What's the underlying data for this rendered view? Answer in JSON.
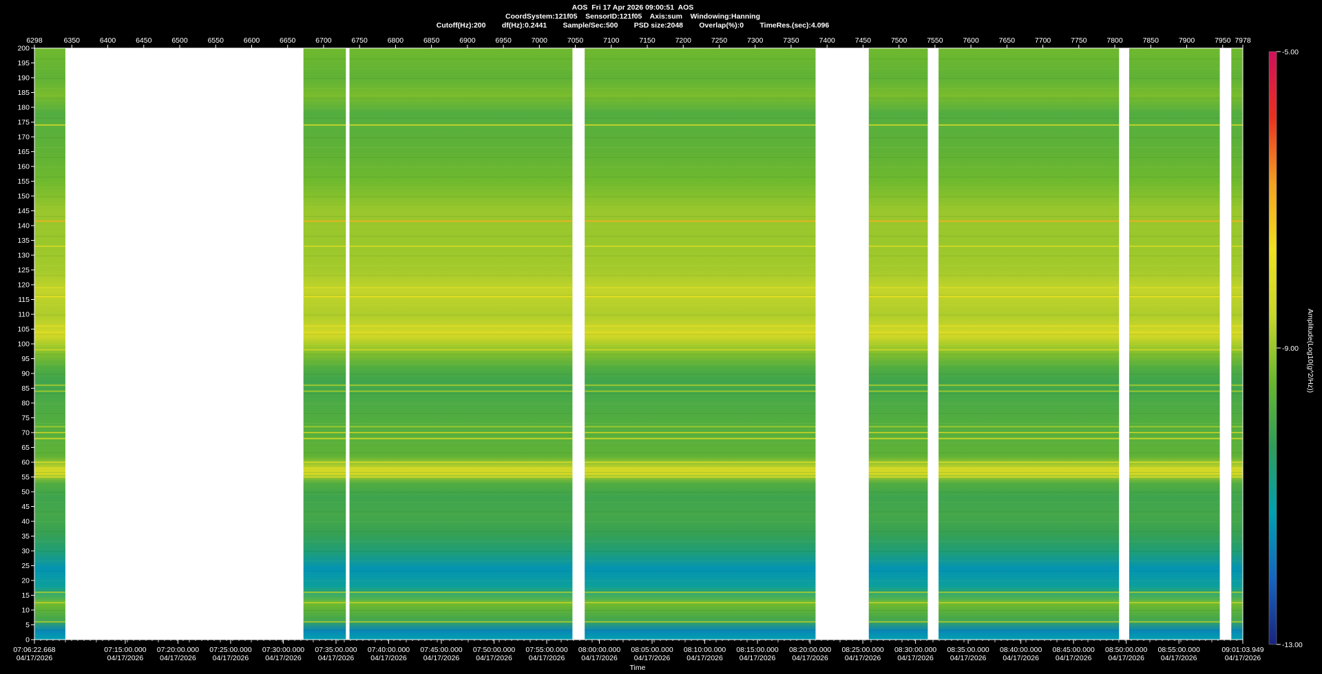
{
  "header": {
    "title": "AOS  Fri 17 Apr 2026 09:00:51  AOS",
    "line1": "CoordSystem:121f05    SensorID:121f05    Axis:sum    Windowing:Hanning",
    "line2": "Cutoff(Hz):200        df(Hz):0.2441        Sample/Sec:500        PSD size:2048        Overlap(%):0        TimeRes.(sec):4.096"
  },
  "chart_data": {
    "type": "heatmap",
    "title": "",
    "xlabel": "Time",
    "ylabel": "",
    "colorbar_label": "Amplitude(Log10(g^2/Hz))",
    "ylim": [
      0,
      200
    ],
    "y_ticks": [
      0,
      5,
      10,
      15,
      20,
      25,
      30,
      35,
      40,
      45,
      50,
      55,
      60,
      65,
      70,
      75,
      80,
      85,
      90,
      95,
      100,
      105,
      110,
      115,
      120,
      125,
      130,
      135,
      140,
      145,
      150,
      155,
      160,
      165,
      170,
      175,
      180,
      185,
      190,
      195,
      200
    ],
    "top_axis": {
      "range": [
        6298,
        7978
      ],
      "ticks": [
        6298,
        6350,
        6400,
        6450,
        6500,
        6550,
        6600,
        6650,
        6700,
        6750,
        6800,
        6850,
        6900,
        6950,
        7000,
        7050,
        7100,
        7150,
        7200,
        7250,
        7300,
        7350,
        7400,
        7450,
        7500,
        7550,
        7600,
        7650,
        7700,
        7750,
        7800,
        7850,
        7900,
        7950,
        7978
      ]
    },
    "bottom_axis": {
      "start": {
        "time": "07:06:22.668",
        "date": "04/17/2026"
      },
      "end": {
        "time": "09:01:03.949",
        "date": "04/17/2026"
      },
      "ticks": [
        {
          "time": "07:15:00.000",
          "date": "04/17/2026"
        },
        {
          "time": "07:20:00.000",
          "date": "04/17/2026"
        },
        {
          "time": "07:25:00.000",
          "date": "04/17/2026"
        },
        {
          "time": "07:30:00.000",
          "date": "04/17/2026"
        },
        {
          "time": "07:35:00.000",
          "date": "04/17/2026"
        },
        {
          "time": "07:40:00.000",
          "date": "04/17/2026"
        },
        {
          "time": "07:45:00.000",
          "date": "04/17/2026"
        },
        {
          "time": "07:50:00.000",
          "date": "04/17/2026"
        },
        {
          "time": "07:55:00.000",
          "date": "04/17/2026"
        },
        {
          "time": "08:00:00.000",
          "date": "04/17/2026"
        },
        {
          "time": "08:05:00.000",
          "date": "04/17/2026"
        },
        {
          "time": "08:10:00.000",
          "date": "04/17/2026"
        },
        {
          "time": "08:15:00.000",
          "date": "04/17/2026"
        },
        {
          "time": "08:20:00.000",
          "date": "04/17/2026"
        },
        {
          "time": "08:25:00.000",
          "date": "04/17/2026"
        },
        {
          "time": "08:30:00.000",
          "date": "04/17/2026"
        },
        {
          "time": "08:35:00.000",
          "date": "04/17/2026"
        },
        {
          "time": "08:40:00.000",
          "date": "04/17/2026"
        },
        {
          "time": "08:45:00.000",
          "date": "04/17/2026"
        },
        {
          "time": "08:50:00.000",
          "date": "04/17/2026"
        },
        {
          "time": "08:55:00.000",
          "date": "04/17/2026"
        }
      ]
    },
    "data_segments": [
      {
        "from": 6298,
        "to": 6341
      },
      {
        "from": 6672,
        "to": 6731
      },
      {
        "from": 6736,
        "to": 7046
      },
      {
        "from": 7063,
        "to": 7384
      },
      {
        "from": 7458,
        "to": 7540
      },
      {
        "from": 7555,
        "to": 7806
      },
      {
        "from": 7820,
        "to": 7946
      },
      {
        "from": 7962,
        "to": 7978
      }
    ],
    "colorbar": {
      "min": -13.0,
      "max": -5.0,
      "labels": [
        "-5.00",
        "-9.00",
        "-13.00"
      ]
    },
    "colormap": [
      "#1a237e",
      "#1565c0",
      "#00a0b0",
      "#2e9d5a",
      "#6ab72e",
      "#c8d62a",
      "#f0e020",
      "#f5a020",
      "#e83020",
      "#d0105a"
    ],
    "band_levels": [
      {
        "hz": 0,
        "level": -11.2
      },
      {
        "hz": 3,
        "level": -11.6
      },
      {
        "hz": 7,
        "level": -10.0
      },
      {
        "hz": 12,
        "level": -9.4
      },
      {
        "hz": 18,
        "level": -11.0
      },
      {
        "hz": 24,
        "level": -11.4
      },
      {
        "hz": 30,
        "level": -10.6
      },
      {
        "hz": 36,
        "level": -10.2
      },
      {
        "hz": 42,
        "level": -10.0
      },
      {
        "hz": 48,
        "level": -10.1
      },
      {
        "hz": 53,
        "level": -9.8
      },
      {
        "hz": 57,
        "level": -8.2
      },
      {
        "hz": 62,
        "level": -9.6
      },
      {
        "hz": 67,
        "level": -9.7
      },
      {
        "hz": 74,
        "level": -9.8
      },
      {
        "hz": 80,
        "level": -9.9
      },
      {
        "hz": 87,
        "level": -10.1
      },
      {
        "hz": 92,
        "level": -9.8
      },
      {
        "hz": 97,
        "level": -9.2
      },
      {
        "hz": 103,
        "level": -8.3
      },
      {
        "hz": 110,
        "level": -8.8
      },
      {
        "hz": 118,
        "level": -8.6
      },
      {
        "hz": 125,
        "level": -8.9
      },
      {
        "hz": 135,
        "level": -9.0
      },
      {
        "hz": 145,
        "level": -9.0
      },
      {
        "hz": 155,
        "level": -9.4
      },
      {
        "hz": 165,
        "level": -9.6
      },
      {
        "hz": 172,
        "level": -9.7
      },
      {
        "hz": 178,
        "level": -9.8
      },
      {
        "hz": 184,
        "level": -9.3
      },
      {
        "hz": 190,
        "level": -9.6
      },
      {
        "hz": 200,
        "level": -9.4
      }
    ],
    "spectral_lines": [
      {
        "hz": 141.5,
        "level": -7.0
      },
      {
        "hz": 133,
        "level": -8.3
      },
      {
        "hz": 116,
        "level": -7.8
      },
      {
        "hz": 119,
        "level": -8.2
      },
      {
        "hz": 104,
        "level": -8.0
      },
      {
        "hz": 106,
        "level": -8.0
      },
      {
        "hz": 98,
        "level": -8.5
      },
      {
        "hz": 86,
        "level": -8.8
      },
      {
        "hz": 84,
        "level": -8.9
      },
      {
        "hz": 72,
        "level": -8.9
      },
      {
        "hz": 70,
        "level": -8.6
      },
      {
        "hz": 68,
        "level": -8.2
      },
      {
        "hz": 60,
        "level": -8.3
      },
      {
        "hz": 58,
        "level": -8.0
      },
      {
        "hz": 56,
        "level": -7.9
      },
      {
        "hz": 55,
        "level": -8.1
      },
      {
        "hz": 174,
        "level": -8.3
      },
      {
        "hz": 12.5,
        "level": -8.6
      },
      {
        "hz": 16,
        "level": -8.8
      },
      {
        "hz": 6,
        "level": -8.8
      }
    ]
  }
}
